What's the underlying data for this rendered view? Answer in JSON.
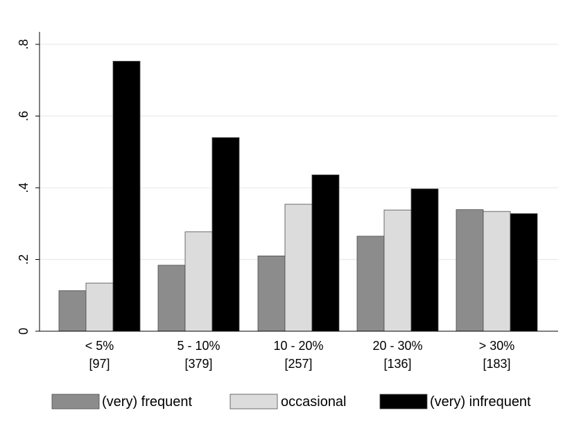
{
  "chart_data": {
    "type": "bar",
    "title": "",
    "xlabel": "",
    "ylabel": "",
    "ylim": [
      0,
      0.8
    ],
    "yticks": [
      0,
      0.2,
      0.4,
      0.6,
      0.8
    ],
    "ytick_labels": [
      "0",
      ".2",
      ".4",
      ".6",
      ".8"
    ],
    "grid": true,
    "legend_position": "bottom",
    "categories": [
      "< 5%",
      "5 - 10%",
      "10 - 20%",
      "20 - 30%",
      "> 30%"
    ],
    "category_counts": [
      "[97]",
      "[379]",
      "[257]",
      "[136]",
      "[183]"
    ],
    "series": [
      {
        "name": "(very) frequent",
        "color": "#8c8c8c",
        "values": [
          0.113,
          0.184,
          0.21,
          0.265,
          0.339
        ]
      },
      {
        "name": "occasional",
        "color": "#dcdcdc",
        "values": [
          0.134,
          0.277,
          0.354,
          0.338,
          0.334
        ]
      },
      {
        "name": "(very) infrequent",
        "color": "#000000",
        "values": [
          0.753,
          0.54,
          0.436,
          0.397,
          0.328
        ]
      }
    ]
  }
}
